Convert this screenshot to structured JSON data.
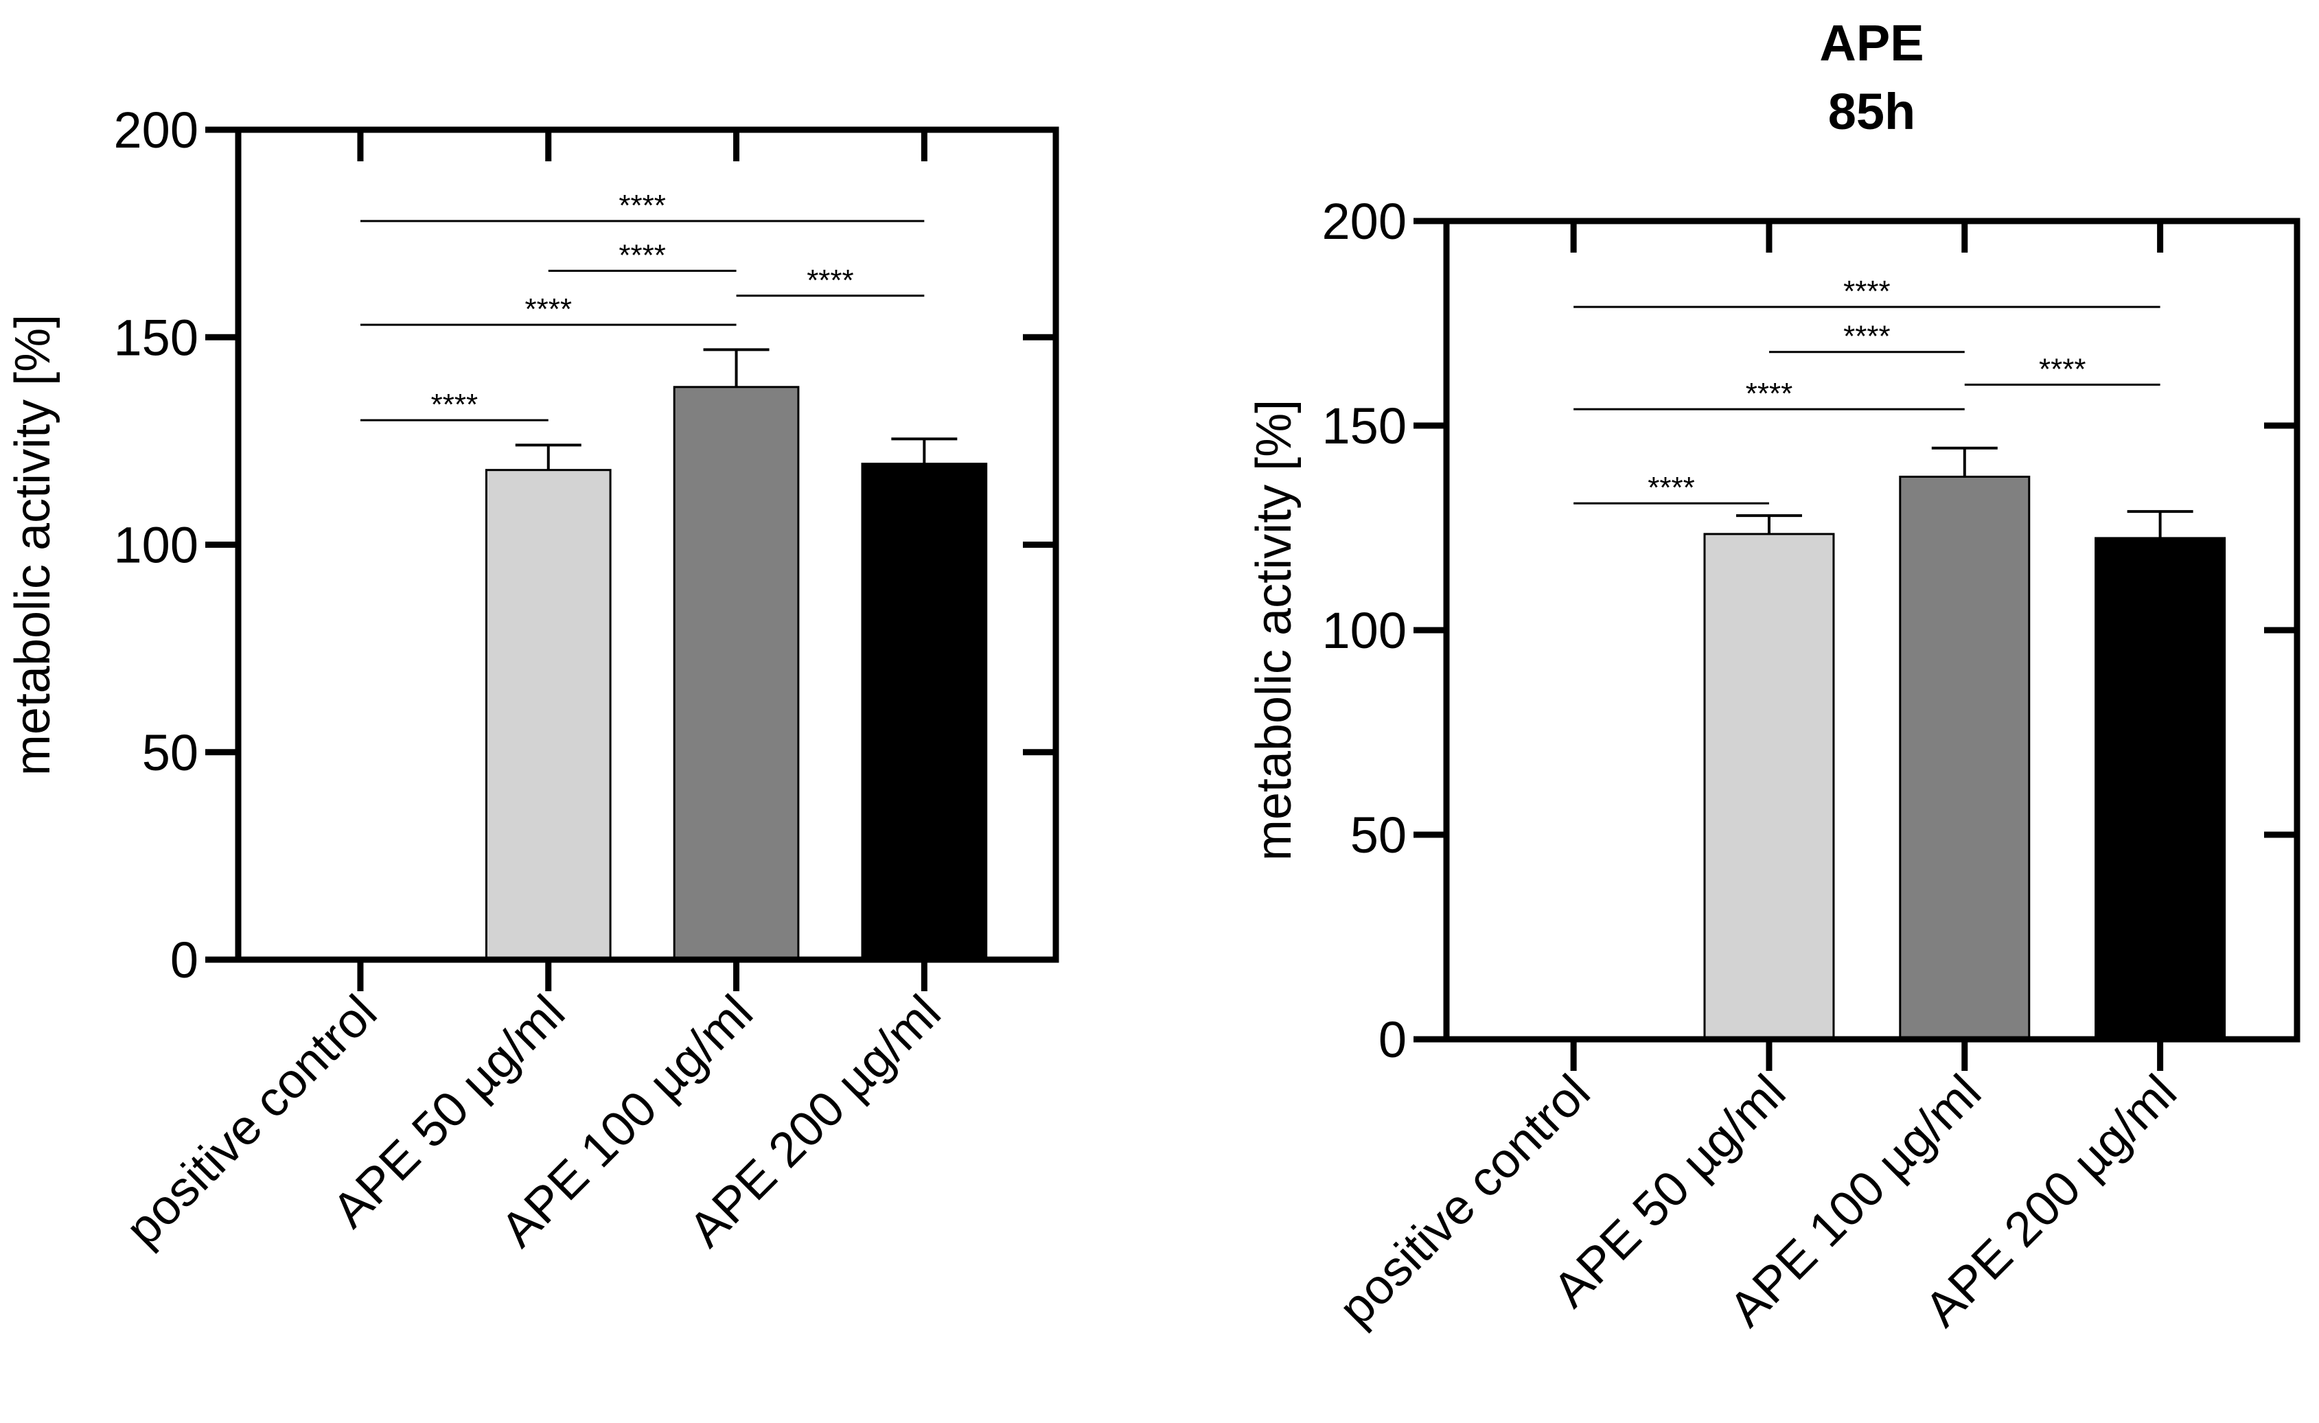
{
  "chart_data": [
    {
      "type": "bar",
      "title": "",
      "title_lines": [],
      "xlabel": "",
      "ylabel": "metabolic activity [%]",
      "ylim": [
        0,
        200
      ],
      "yticks": [
        0,
        50,
        100,
        150,
        200
      ],
      "categories": [
        "positive control",
        "APE 50 µg/ml",
        "APE 100 µg/ml",
        "APE 200 µg/ml"
      ],
      "values": [
        0,
        118,
        138,
        119.5
      ],
      "errors": [
        0,
        6,
        9,
        6
      ],
      "colors": [
        "#ffffff",
        "#d3d3d3",
        "#808080",
        "#000000"
      ],
      "significance": [
        {
          "from": 0,
          "to": 3,
          "y": 178,
          "label": "****"
        },
        {
          "from": 1,
          "to": 2,
          "y": 166,
          "label": "****"
        },
        {
          "from": 0,
          "to": 2,
          "y": 153,
          "label": "****"
        },
        {
          "from": 2,
          "to": 3,
          "y": 160,
          "label": "****"
        },
        {
          "from": 0,
          "to": 1,
          "y": 130,
          "label": "****"
        }
      ]
    },
    {
      "type": "bar",
      "title": "APE 85h",
      "title_lines": [
        "APE",
        "85h"
      ],
      "xlabel": "",
      "ylabel": "metabolic activity [%]",
      "ylim": [
        0,
        200
      ],
      "yticks": [
        0,
        50,
        100,
        150,
        200
      ],
      "categories": [
        "positive control",
        "APE 50 µg/ml",
        "APE 100 µg/ml",
        "APE 200 µg/ml"
      ],
      "values": [
        0,
        123.5,
        137.5,
        122.5
      ],
      "errors": [
        0,
        4.5,
        7,
        6.5
      ],
      "colors": [
        "#ffffff",
        "#d3d3d3",
        "#808080",
        "#000000"
      ],
      "significance": [
        {
          "from": 0,
          "to": 3,
          "y": 179,
          "label": "****"
        },
        {
          "from": 1,
          "to": 2,
          "y": 168,
          "label": "****"
        },
        {
          "from": 0,
          "to": 2,
          "y": 154,
          "label": "****"
        },
        {
          "from": 2,
          "to": 3,
          "y": 160,
          "label": "****"
        },
        {
          "from": 0,
          "to": 1,
          "y": 131,
          "label": "****"
        }
      ]
    }
  ]
}
